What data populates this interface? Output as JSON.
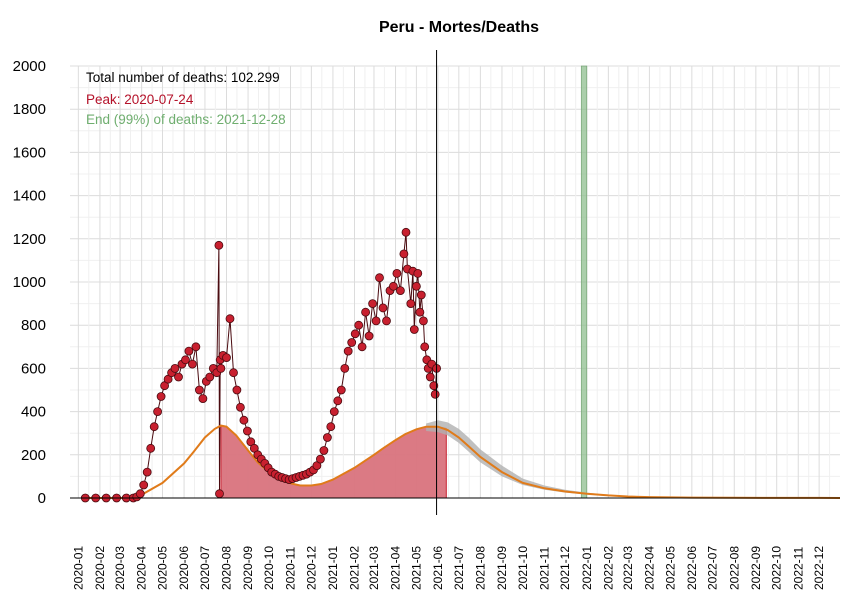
{
  "chart_data": {
    "type": "line",
    "title": "Peru - Mortes/Deaths",
    "xlabel": "",
    "ylabel": "",
    "ylim": [
      0,
      2000
    ],
    "yticks": [
      0,
      200,
      400,
      600,
      800,
      1000,
      1200,
      1400,
      1600,
      1800,
      2000
    ],
    "x_range": [
      "2019-12-20",
      "2022-12-31"
    ],
    "xticks": [
      "2020-01",
      "2020-02",
      "2020-03",
      "2020-04",
      "2020-05",
      "2020-06",
      "2020-07",
      "2020-08",
      "2020-09",
      "2020-10",
      "2020-11",
      "2020-12",
      "2021-01",
      "2021-02",
      "2021-03",
      "2021-04",
      "2021-05",
      "2021-06",
      "2021-07",
      "2021-08",
      "2021-09",
      "2021-10",
      "2021-11",
      "2021-12",
      "2022-01",
      "2022-02",
      "2022-03",
      "2022-04",
      "2022-05",
      "2022-06",
      "2022-07",
      "2022-08",
      "2022-09",
      "2022-10",
      "2022-11",
      "2022-12"
    ],
    "grid": true,
    "annotations": {
      "total": "Total number of deaths: 102.299",
      "peak": "Peak: 2020-07-24",
      "end": "End (99%) of deaths: 2021-12-28"
    },
    "current_date": "2021-05-30",
    "end_band": [
      "2021-12-24",
      "2022-01-01"
    ],
    "colors": {
      "observed": "#c8202f",
      "observed_outline": "#4a0b10",
      "fit": "#e07b1a",
      "fitted_area": "#d9737d",
      "end_band": "#8fbf8f",
      "peak_text": "#b5122a",
      "end_text": "#6fae6f",
      "uncertainty": "#b0b0b0"
    },
    "observed_daily_deaths": {
      "dates": [
        "2020-01-11",
        "2020-01-26",
        "2020-02-10",
        "2020-02-25",
        "2020-03-10",
        "2020-03-20",
        "2020-03-25",
        "2020-03-30",
        "2020-04-04",
        "2020-04-09",
        "2020-04-14",
        "2020-04-19",
        "2020-04-24",
        "2020-04-29",
        "2020-05-04",
        "2020-05-09",
        "2020-05-14",
        "2020-05-19",
        "2020-05-24",
        "2020-05-29",
        "2020-06-03",
        "2020-06-08",
        "2020-06-13",
        "2020-06-18",
        "2020-06-23",
        "2020-06-28",
        "2020-07-03",
        "2020-07-08",
        "2020-07-13",
        "2020-07-18",
        "2020-07-21",
        "2020-07-22",
        "2020-07-23",
        "2020-07-24",
        "2020-07-27",
        "2020-08-01",
        "2020-08-06",
        "2020-08-11",
        "2020-08-16",
        "2020-08-21",
        "2020-08-26",
        "2020-08-31",
        "2020-09-05",
        "2020-09-10",
        "2020-09-15",
        "2020-09-20",
        "2020-09-25",
        "2020-09-30",
        "2020-10-05",
        "2020-10-10",
        "2020-10-15",
        "2020-10-20",
        "2020-10-25",
        "2020-10-30",
        "2020-11-04",
        "2020-11-09",
        "2020-11-14",
        "2020-11-19",
        "2020-11-24",
        "2020-11-29",
        "2020-12-04",
        "2020-12-09",
        "2020-12-14",
        "2020-12-19",
        "2020-12-24",
        "2020-12-29",
        "2021-01-03",
        "2021-01-08",
        "2021-01-13",
        "2021-01-18",
        "2021-01-23",
        "2021-01-28",
        "2021-02-02",
        "2021-02-07",
        "2021-02-12",
        "2021-02-17",
        "2021-02-22",
        "2021-02-27",
        "2021-03-04",
        "2021-03-09",
        "2021-03-14",
        "2021-03-19",
        "2021-03-24",
        "2021-03-29",
        "2021-04-03",
        "2021-04-08",
        "2021-04-13",
        "2021-04-16",
        "2021-04-18",
        "2021-04-23",
        "2021-04-26",
        "2021-04-28",
        "2021-05-01",
        "2021-05-03",
        "2021-05-06",
        "2021-05-08",
        "2021-05-11",
        "2021-05-13",
        "2021-05-16",
        "2021-05-18",
        "2021-05-21",
        "2021-05-23",
        "2021-05-26",
        "2021-05-28",
        "2021-05-30"
      ],
      "values": [
        0,
        0,
        0,
        0,
        0,
        0,
        5,
        20,
        60,
        120,
        230,
        330,
        400,
        470,
        520,
        550,
        580,
        600,
        560,
        620,
        640,
        680,
        620,
        700,
        500,
        460,
        540,
        560,
        600,
        580,
        1170,
        20,
        640,
        600,
        660,
        650,
        830,
        580,
        500,
        420,
        360,
        310,
        260,
        230,
        200,
        180,
        160,
        140,
        120,
        110,
        100,
        95,
        90,
        85,
        90,
        95,
        100,
        105,
        110,
        120,
        130,
        150,
        180,
        220,
        280,
        330,
        400,
        450,
        500,
        600,
        680,
        720,
        760,
        800,
        700,
        860,
        750,
        900,
        820,
        1020,
        880,
        820,
        960,
        980,
        1040,
        960,
        1130,
        1230,
        1060,
        900,
        1050,
        780,
        980,
        1040,
        860,
        940,
        820,
        700,
        640,
        600,
        560,
        620,
        520,
        480,
        600
      ]
    },
    "model_fit": {
      "dates": [
        "2020-01-11",
        "2020-03-10",
        "2020-04-01",
        "2020-05-01",
        "2020-06-01",
        "2020-06-15",
        "2020-07-01",
        "2020-07-15",
        "2020-07-24",
        "2020-08-01",
        "2020-08-15",
        "2020-09-01",
        "2020-09-15",
        "2020-10-01",
        "2020-10-15",
        "2020-11-01",
        "2020-11-15",
        "2020-12-01",
        "2020-12-15",
        "2021-01-01",
        "2021-01-15",
        "2021-02-01",
        "2021-02-15",
        "2021-03-01",
        "2021-03-15",
        "2021-04-01",
        "2021-04-15",
        "2021-05-01",
        "2021-05-15",
        "2021-06-01",
        "2021-06-15",
        "2021-07-01",
        "2021-07-15",
        "2021-08-01",
        "2021-09-01",
        "2021-10-01",
        "2021-11-01",
        "2021-12-01",
        "2022-01-01",
        "2022-02-01",
        "2022-03-01",
        "2022-04-01",
        "2022-06-01",
        "2022-08-01",
        "2022-10-01",
        "2022-12-01",
        "2022-12-31"
      ],
      "values": [
        0,
        0,
        15,
        70,
        160,
        215,
        280,
        320,
        335,
        330,
        290,
        220,
        165,
        120,
        90,
        68,
        58,
        58,
        65,
        85,
        110,
        140,
        170,
        200,
        232,
        268,
        296,
        318,
        330,
        330,
        315,
        280,
        240,
        190,
        120,
        70,
        45,
        30,
        20,
        12,
        7,
        4,
        2,
        1,
        0.5,
        0.3,
        0.2
      ]
    },
    "fitted_area": {
      "dates": [
        "2020-07-24",
        "2020-08-01",
        "2020-08-15",
        "2020-09-01",
        "2020-09-15",
        "2020-10-01",
        "2020-10-15",
        "2020-11-01",
        "2020-11-15",
        "2020-12-01",
        "2020-12-15",
        "2021-01-01",
        "2021-01-15",
        "2021-02-01",
        "2021-02-15",
        "2021-03-01",
        "2021-03-15",
        "2021-04-01",
        "2021-04-15",
        "2021-05-01",
        "2021-05-15",
        "2021-06-01",
        "2021-06-13"
      ],
      "values": [
        335,
        330,
        290,
        220,
        165,
        120,
        90,
        68,
        58,
        58,
        65,
        85,
        110,
        140,
        170,
        200,
        232,
        268,
        296,
        318,
        330,
        330,
        322
      ]
    },
    "uncertainty_band": {
      "dates": [
        "2021-05-15",
        "2021-06-01",
        "2021-06-15",
        "2021-07-01",
        "2021-07-15",
        "2021-08-01",
        "2021-09-01",
        "2021-10-01",
        "2021-11-01",
        "2021-12-01",
        "2022-01-01",
        "2022-02-01",
        "2022-03-01",
        "2022-04-01"
      ],
      "lower": [
        310,
        305,
        290,
        255,
        215,
        165,
        100,
        60,
        38,
        25,
        16,
        9,
        5,
        3
      ],
      "upper": [
        345,
        360,
        350,
        320,
        280,
        225,
        150,
        90,
        58,
        38,
        25,
        14,
        8,
        5
      ]
    }
  }
}
